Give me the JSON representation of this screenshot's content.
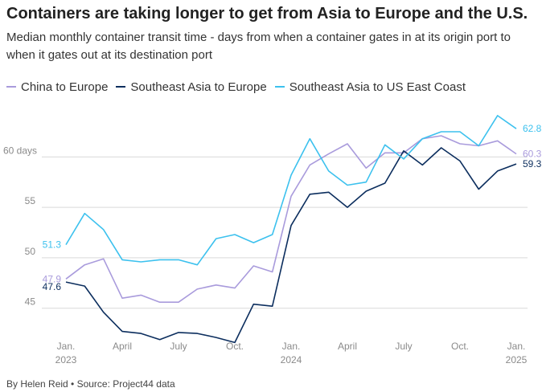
{
  "title": "Containers are taking longer to get from Asia to Europe and the U.S.",
  "subtitle": "Median monthly container transit time - days from when a container gates in at its origin port to when it gates out at its destination port",
  "footer": "By Helen Reid • Source: Project44 data",
  "chart_data": {
    "type": "line",
    "x": [
      "2023-01",
      "2023-02",
      "2023-03",
      "2023-04",
      "2023-05",
      "2023-06",
      "2023-07",
      "2023-08",
      "2023-09",
      "2023-10",
      "2023-11",
      "2023-12",
      "2024-01",
      "2024-02",
      "2024-03",
      "2024-04",
      "2024-05",
      "2024-06",
      "2024-07",
      "2024-08",
      "2024-09",
      "2024-10",
      "2024-11",
      "2024-12",
      "2025-01"
    ],
    "series": [
      {
        "name": "China to Europe",
        "color": "#a99bdc",
        "start_label": "47.9",
        "end_label": "60.3",
        "values": [
          47.9,
          49.3,
          49.9,
          46.0,
          46.3,
          45.6,
          45.6,
          46.9,
          47.3,
          47.0,
          49.2,
          48.6,
          56.1,
          59.2,
          60.3,
          61.3,
          58.9,
          60.4,
          60.4,
          61.8,
          62.1,
          61.3,
          61.1,
          61.6,
          60.3
        ]
      },
      {
        "name": "Southeast Asia to Europe",
        "color": "#0c2e5e",
        "start_label": "47.6",
        "end_label": "59.3",
        "values": [
          47.6,
          47.2,
          44.6,
          42.7,
          42.5,
          41.9,
          42.6,
          42.5,
          42.1,
          41.6,
          45.4,
          45.2,
          53.2,
          56.3,
          56.5,
          55.0,
          56.6,
          57.4,
          60.6,
          59.2,
          60.9,
          59.6,
          56.8,
          58.6,
          59.3
        ]
      },
      {
        "name": "Southeast Asia to US East Coast",
        "color": "#3cc1ee",
        "start_label": "51.3",
        "end_label": "62.8",
        "values": [
          51.3,
          54.4,
          52.8,
          49.8,
          49.6,
          49.8,
          49.8,
          49.3,
          51.9,
          52.3,
          51.5,
          52.3,
          58.2,
          61.8,
          58.6,
          57.2,
          57.5,
          61.2,
          59.8,
          61.8,
          62.5,
          62.5,
          61.1,
          64.1,
          62.8
        ]
      }
    ],
    "y_ticks": [
      {
        "value": 60,
        "label": "60 days"
      },
      {
        "value": 55,
        "label": "55"
      },
      {
        "value": 50,
        "label": "50"
      },
      {
        "value": 45,
        "label": "45"
      }
    ],
    "x_ticks": [
      {
        "index": 0,
        "label": "Jan.",
        "sublabel": "2023"
      },
      {
        "index": 3,
        "label": "April",
        "sublabel": ""
      },
      {
        "index": 6,
        "label": "July",
        "sublabel": ""
      },
      {
        "index": 9,
        "label": "Oct.",
        "sublabel": ""
      },
      {
        "index": 12,
        "label": "Jan.",
        "sublabel": "2024"
      },
      {
        "index": 15,
        "label": "April",
        "sublabel": ""
      },
      {
        "index": 18,
        "label": "July",
        "sublabel": ""
      },
      {
        "index": 21,
        "label": "Oct.",
        "sublabel": ""
      },
      {
        "index": 24,
        "label": "Jan.",
        "sublabel": "2025"
      }
    ],
    "ylim": [
      40.2,
      66
    ],
    "grid": true,
    "legend": "top-left"
  }
}
